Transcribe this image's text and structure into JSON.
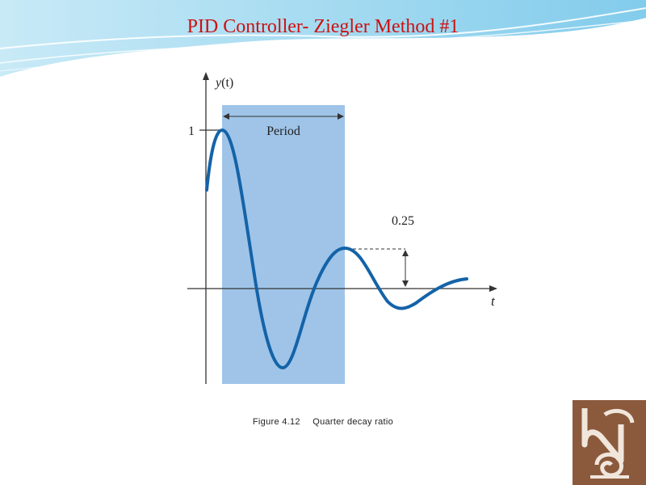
{
  "slide": {
    "title": "PID Controller- Ziegler Method #1"
  },
  "figure": {
    "y_axis_label_main": "y",
    "y_axis_label_paren": "(t)",
    "x_axis_label": "t",
    "y_tick_one": "1",
    "period_label": "Period",
    "decay_label": "0.25",
    "caption_number": "Figure 4.12",
    "caption_text": "Quarter decay ratio"
  },
  "colors": {
    "title": "#cc1111",
    "curve": "#1463a8",
    "period_band": "#9fc4e8",
    "logo": "#8b5a3c"
  },
  "logo": {
    "icon": "institution-logo-icon"
  }
}
